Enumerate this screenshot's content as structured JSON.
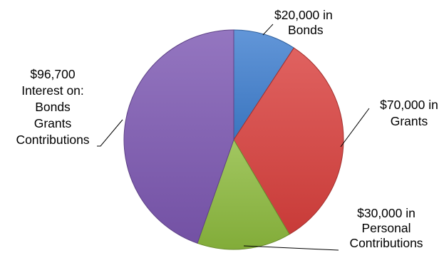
{
  "chart_data": {
    "type": "pie",
    "title": "",
    "start_angle_deg": 0,
    "direction": "clockwise",
    "slices": [
      {
        "value": 20000,
        "label_lines": [
          "$20,000 in",
          "Bonds"
        ],
        "color": "#3f7fd0"
      },
      {
        "value": 70000,
        "label_lines": [
          "$70,000 in",
          "Grants"
        ],
        "color": "#d9403d"
      },
      {
        "value": 30000,
        "label_lines": [
          "$30,000 in",
          "Personal",
          "Contributions"
        ],
        "color": "#8dbb3e"
      },
      {
        "value": 96700,
        "label_lines": [
          "$96,700",
          "Interest on:",
          "Bonds",
          "Grants",
          "Contributions"
        ],
        "color": "#7d58b2"
      }
    ],
    "legend": "none",
    "labels": "outside with leader lines"
  }
}
